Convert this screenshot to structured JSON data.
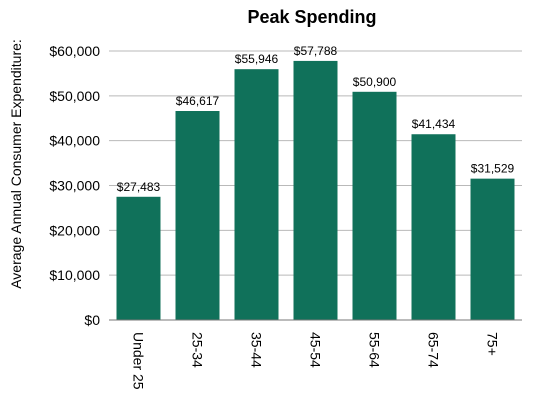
{
  "chart_data": {
    "type": "bar",
    "title": "Peak Spending",
    "xlabel": "",
    "ylabel": "Average Annual Consumer Expenditure:",
    "categories": [
      "Under 25",
      "25-34",
      "35-44",
      "45-54",
      "55-64",
      "65-74",
      "75+"
    ],
    "values": [
      27483,
      46617,
      55946,
      57788,
      50900,
      41434,
      31529
    ],
    "data_labels": [
      "$27,483",
      "$46,617",
      "$55,946",
      "$57,788",
      "$50,900",
      "$41,434",
      "$31,529"
    ],
    "ylim": [
      0,
      60000
    ],
    "yticks": [
      0,
      10000,
      20000,
      30000,
      40000,
      50000,
      60000
    ],
    "ytick_labels": [
      "$0",
      "$10,000",
      "$20,000",
      "$30,000",
      "$40,000",
      "$50,000",
      "$60,000"
    ],
    "grid": true,
    "legend": "none",
    "colors": {
      "bar": "#10715a"
    }
  }
}
